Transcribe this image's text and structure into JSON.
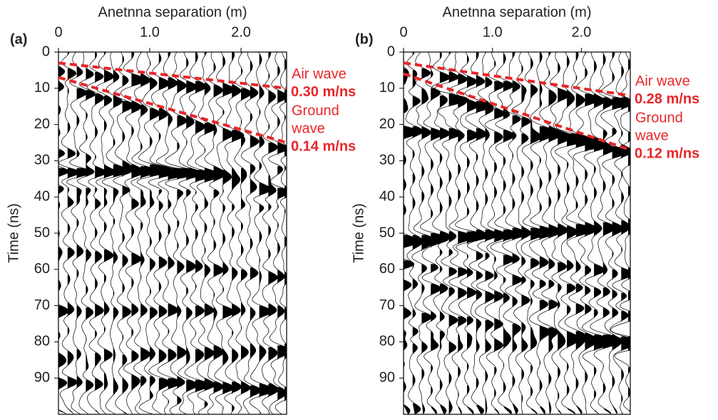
{
  "chart_data": [
    {
      "type": "wiggle",
      "panel": "(a)",
      "title": "Anetnna separation (m)",
      "y_label": "Time (ns)",
      "xlim": [
        0,
        2.5
      ],
      "xticks": [
        0,
        {
          "value": 1,
          "label": "1.0"
        },
        {
          "value": 2,
          "label": "2.0"
        }
      ],
      "ylim": [
        0,
        100
      ],
      "yticks": [
        0,
        10,
        20,
        30,
        40,
        50,
        60,
        70,
        80,
        90
      ],
      "series": [
        {
          "name": [
            "Air wave"
          ],
          "speed": "0.30 m/ns",
          "color": "#e8262a",
          "x": [
            0,
            2.5
          ],
          "values": [
            3,
            10
          ]
        },
        {
          "name": [
            "Ground",
            "wave"
          ],
          "speed": "0.14 m/ns",
          "color": "#e8262a",
          "x": [
            0,
            2.5
          ],
          "values": [
            7,
            25
          ]
        }
      ]
    },
    {
      "type": "wiggle",
      "panel": "(b)",
      "title": "Anetnna separation (m)",
      "y_label": "Time (ns)",
      "xlim": [
        0,
        2.55
      ],
      "xticks": [
        0,
        {
          "value": 1,
          "label": "1.0"
        },
        {
          "value": 2,
          "label": "2.0"
        }
      ],
      "ylim": [
        0,
        100
      ],
      "yticks": [
        0,
        10,
        20,
        30,
        40,
        50,
        60,
        70,
        80,
        90
      ],
      "series": [
        {
          "name": [
            "Air wave"
          ],
          "speed": "0.28 m/ns",
          "color": "#e8262a",
          "x": [
            0,
            2.55
          ],
          "values": [
            3,
            12
          ]
        },
        {
          "name": [
            "Ground",
            "wave"
          ],
          "speed": "0.12 m/ns",
          "color": "#e8262a",
          "x": [
            0,
            2.55
          ],
          "values": [
            6,
            27
          ]
        }
      ]
    }
  ]
}
